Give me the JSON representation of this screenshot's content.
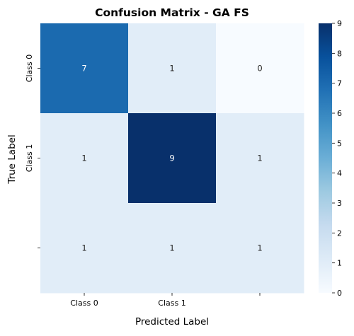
{
  "chart_data": {
    "type": "heatmap",
    "title": "Confusion Matrix - GA FS",
    "xlabel": "Predicted Label",
    "ylabel": "True Label",
    "x_tick_labels": [
      "Class 0",
      "Class 1",
      ""
    ],
    "y_tick_labels": [
      "Class 0",
      "Class 1",
      ""
    ],
    "values": [
      [
        7,
        1,
        0
      ],
      [
        1,
        9,
        1
      ],
      [
        1,
        1,
        1
      ]
    ],
    "colormap": "Blues",
    "colorbar": {
      "min": 0,
      "max": 9,
      "ticks": [
        0,
        1,
        2,
        3,
        4,
        5,
        6,
        7,
        8,
        9
      ]
    },
    "annotate_cells": true
  }
}
